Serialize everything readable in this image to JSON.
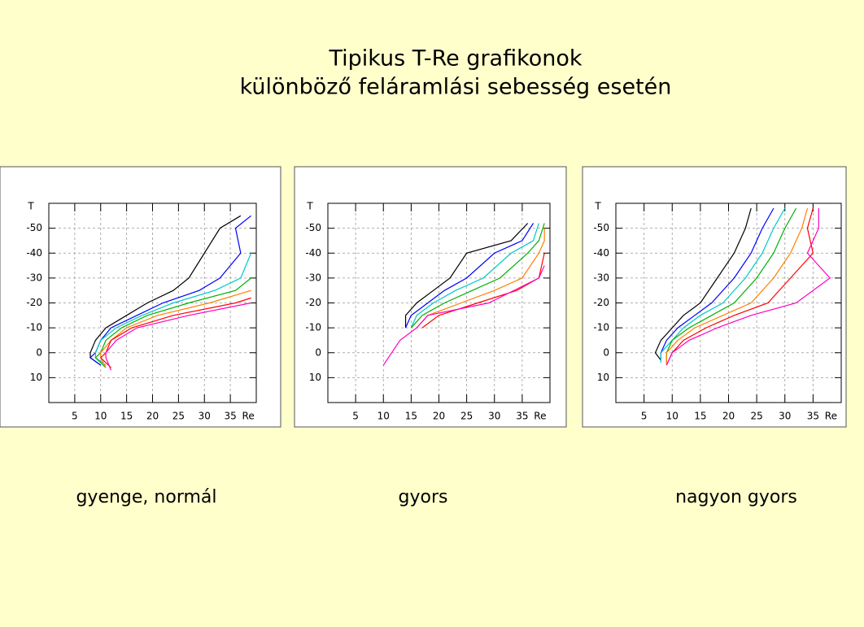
{
  "title_lines": [
    "Tipikus T-Re grafikonok",
    "különböző feláramlási sebesség esetén"
  ],
  "chart_data": [
    {
      "type": "line",
      "caption": "gyenge, normál",
      "xlabel": "Re",
      "ylabel": "T",
      "xlim": [
        0,
        40
      ],
      "xticks": [
        5,
        10,
        15,
        20,
        25,
        30,
        35
      ],
      "ylim": [
        20,
        -60
      ],
      "yticks": [
        -50,
        -40,
        -30,
        -20,
        -10,
        0,
        10
      ],
      "grid": true,
      "series": [
        {
          "color": "#000000",
          "x": [
            10,
            8,
            8,
            9,
            11,
            15,
            19,
            24,
            27,
            30,
            33,
            37
          ],
          "values": [
            5,
            2,
            0,
            -5,
            -10,
            -15,
            -20,
            -25,
            -30,
            -40,
            -50,
            -55
          ]
        },
        {
          "color": "#0000ff",
          "x": [
            10,
            8,
            9,
            10,
            12,
            17,
            22,
            29,
            33,
            37,
            36,
            39
          ],
          "values": [
            5,
            2,
            0,
            -5,
            -10,
            -15,
            -20,
            -25,
            -30,
            -40,
            -50,
            -55
          ]
        },
        {
          "color": "#00c8c8",
          "x": [
            11,
            9,
            9,
            10,
            13,
            18,
            24,
            32,
            37,
            39
          ],
          "values": [
            5,
            2,
            0,
            -5,
            -10,
            -15,
            -20,
            -25,
            -30,
            -40
          ]
        },
        {
          "color": "#00b000",
          "x": [
            11,
            9,
            10,
            11,
            14,
            19,
            27,
            36,
            39
          ],
          "values": [
            6,
            2,
            0,
            -5,
            -10,
            -15,
            -20,
            -25,
            -30
          ]
        },
        {
          "color": "#ff8000",
          "x": [
            11,
            10,
            10,
            12,
            15,
            21,
            31,
            39
          ],
          "values": [
            6,
            2,
            0,
            -5,
            -10,
            -15,
            -20,
            -25
          ]
        },
        {
          "color": "#ff0000",
          "x": [
            12,
            10,
            11,
            12,
            16,
            24,
            36,
            39
          ],
          "values": [
            6,
            2,
            0,
            -5,
            -10,
            -15,
            -20,
            -22
          ]
        },
        {
          "color": "#ff00c0",
          "x": [
            12,
            11,
            11,
            13,
            17,
            27,
            39
          ],
          "values": [
            7,
            2,
            0,
            -5,
            -10,
            -15,
            -20
          ]
        }
      ]
    },
    {
      "type": "line",
      "caption": "gyors",
      "xlabel": "Re",
      "ylabel": "T",
      "xlim": [
        0,
        40
      ],
      "xticks": [
        5,
        10,
        15,
        20,
        25,
        30,
        35
      ],
      "ylim": [
        20,
        -60
      ],
      "yticks": [
        -50,
        -40,
        -30,
        -20,
        -10,
        0,
        10
      ],
      "grid": true,
      "series": [
        {
          "color": "#000000",
          "x": [
            14,
            14,
            16,
            19,
            22,
            25,
            33,
            36
          ],
          "values": [
            -10,
            -15,
            -20,
            -25,
            -30,
            -40,
            -45,
            -52
          ]
        },
        {
          "color": "#0000ff",
          "x": [
            14,
            15,
            18,
            21,
            25,
            30,
            35,
            37
          ],
          "values": [
            -10,
            -15,
            -20,
            -25,
            -30,
            -40,
            -45,
            -52
          ]
        },
        {
          "color": "#00c8c8",
          "x": [
            15,
            16,
            19,
            23,
            28,
            33,
            37,
            38
          ],
          "values": [
            -10,
            -15,
            -20,
            -25,
            -30,
            -40,
            -45,
            -52
          ]
        },
        {
          "color": "#00b000",
          "x": [
            15,
            17,
            21,
            26,
            31,
            36,
            38,
            39
          ],
          "values": [
            -10,
            -15,
            -20,
            -25,
            -30,
            -40,
            -45,
            -52
          ]
        },
        {
          "color": "#ff8000",
          "x": [
            16,
            18,
            24,
            30,
            35,
            38,
            39,
            39
          ],
          "values": [
            -10,
            -15,
            -20,
            -25,
            -30,
            -40,
            -45,
            -50
          ]
        },
        {
          "color": "#ff0000",
          "x": [
            17,
            20,
            27,
            34,
            38,
            39
          ],
          "values": [
            -10,
            -15,
            -20,
            -25,
            -30,
            -40
          ]
        },
        {
          "color": "#ff00c0",
          "x": [
            10,
            13,
            16,
            18,
            29,
            38,
            39
          ],
          "values": [
            5,
            -5,
            -10,
            -15,
            -20,
            -30,
            -35
          ]
        }
      ]
    },
    {
      "type": "line",
      "caption": "nagyon gyors",
      "xlabel": "Re",
      "ylabel": "T",
      "xlim": [
        0,
        40
      ],
      "xticks": [
        5,
        10,
        15,
        20,
        25,
        30,
        35
      ],
      "ylim": [
        20,
        -60
      ],
      "yticks": [
        -50,
        -40,
        -30,
        -20,
        -10,
        0,
        10
      ],
      "grid": true,
      "series": [
        {
          "color": "#000000",
          "x": [
            8,
            7,
            8,
            10,
            12,
            15,
            18,
            21,
            23,
            24
          ],
          "values": [
            3,
            0,
            -5,
            -10,
            -15,
            -20,
            -30,
            -40,
            -50,
            -58
          ]
        },
        {
          "color": "#0000ff",
          "x": [
            8,
            8,
            9,
            11,
            14,
            17,
            21,
            24,
            26,
            28
          ],
          "values": [
            3,
            0,
            -5,
            -10,
            -15,
            -20,
            -30,
            -40,
            -50,
            -58
          ]
        },
        {
          "color": "#00c8c8",
          "x": [
            8,
            8,
            10,
            12,
            15,
            19,
            23,
            26,
            28,
            30
          ],
          "values": [
            4,
            0,
            -5,
            -10,
            -15,
            -20,
            -30,
            -40,
            -50,
            -58
          ]
        },
        {
          "color": "#00b000",
          "x": [
            9,
            9,
            10,
            13,
            17,
            21,
            25,
            28,
            30,
            32
          ],
          "values": [
            4,
            0,
            -5,
            -10,
            -15,
            -20,
            -30,
            -40,
            -50,
            -58
          ]
        },
        {
          "color": "#ff8000",
          "x": [
            9,
            9,
            11,
            14,
            19,
            24,
            28,
            31,
            33,
            34
          ],
          "values": [
            5,
            0,
            -5,
            -10,
            -15,
            -20,
            -30,
            -40,
            -50,
            -58
          ]
        },
        {
          "color": "#ff0000",
          "x": [
            9,
            10,
            12,
            16,
            21,
            27,
            31,
            35,
            34,
            35
          ],
          "values": [
            5,
            0,
            -5,
            -10,
            -15,
            -20,
            -30,
            -40,
            -50,
            -58
          ]
        },
        {
          "color": "#ff00c0",
          "x": [
            9,
            10,
            13,
            18,
            24,
            32,
            38,
            34,
            36,
            36
          ],
          "values": [
            5,
            0,
            -5,
            -10,
            -15,
            -20,
            -30,
            -40,
            -50,
            -58
          ]
        }
      ]
    }
  ]
}
